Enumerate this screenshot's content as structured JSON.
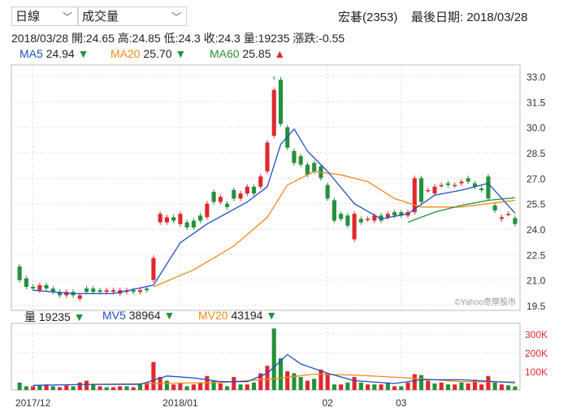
{
  "period_select": {
    "value": "日線"
  },
  "indicator_select": {
    "value": "成交量"
  },
  "stock": {
    "title": "宏碁(2353)",
    "last_date_label": "最後日期: 2018/03/28"
  },
  "ohlc": {
    "date": "2018/03/28",
    "open": "開:24.65",
    "high": "高:24.85",
    "low": "低:24.3",
    "close": "收:24.3",
    "volume": "量:19235",
    "change": "漲跌:-0.55"
  },
  "ma": [
    {
      "name": "MA5",
      "value": "24.94",
      "arrow": "▼",
      "color": "#1e4fc2",
      "arrow_color": "#24913c"
    },
    {
      "name": "MA20",
      "value": "25.70",
      "arrow": "▼",
      "color": "#f08a1c",
      "arrow_color": "#24913c"
    },
    {
      "name": "MA60",
      "value": "25.85",
      "arrow": "▲",
      "color": "#24913c",
      "arrow_color": "#e0282e"
    }
  ],
  "vol_legend": [
    {
      "name": "量",
      "value": "19235",
      "arrow": "▼",
      "color": "#222",
      "arrow_color": "#24913c"
    },
    {
      "name": "MV5",
      "value": "38964",
      "arrow": "▼",
      "color": "#1e4fc2",
      "arrow_color": "#24913c"
    },
    {
      "name": "MV20",
      "value": "43194",
      "arrow": "▼",
      "color": "#f08a1c",
      "arrow_color": "#24913c"
    }
  ],
  "watermark": "©Yahoo奇摩股市",
  "chart_data": {
    "type": "candlestick",
    "colors": {
      "up": "#e0282e",
      "down": "#24913c",
      "ma5": "#1e4fc2",
      "ma20": "#f08a1c",
      "ma60": "#24913c"
    },
    "price_axis": {
      "ticks": [
        "33.0",
        "31.5",
        "30.0",
        "28.5",
        "27.0",
        "25.5",
        "24.0",
        "22.5",
        "21.0",
        "19.5"
      ],
      "range": [
        19.5,
        33.0
      ]
    },
    "volume_axis": {
      "ticks": [
        "300K",
        "200K",
        "100K"
      ],
      "range": [
        0,
        340000
      ]
    },
    "x_labels": [
      {
        "label": "2017/12",
        "index": 2
      },
      {
        "label": "2018/01",
        "index": 24
      },
      {
        "label": "02",
        "index": 46
      },
      {
        "label": "03",
        "index": 57
      }
    ],
    "candles": [
      [
        21.8,
        21.0
      ],
      [
        21.1,
        20.6
      ],
      [
        20.6,
        20.5
      ],
      [
        20.4,
        20.7
      ],
      [
        20.7,
        20.5
      ],
      [
        20.5,
        20.3
      ],
      [
        20.3,
        20.1
      ],
      [
        20.1,
        20.3
      ],
      [
        20.3,
        20.1
      ],
      [
        19.9,
        20.1
      ],
      [
        20.5,
        20.3
      ],
      [
        20.5,
        20.3
      ],
      [
        20.4,
        20.3
      ],
      [
        20.3,
        20.4
      ],
      [
        20.3,
        20.4
      ],
      [
        20.2,
        20.4
      ],
      [
        20.3,
        20.4
      ],
      [
        20.4,
        20.3
      ],
      [
        20.3,
        20.4
      ],
      [
        20.5,
        20.4
      ],
      [
        21.0,
        22.3
      ],
      [
        24.4,
        24.9
      ],
      [
        24.4,
        24.7
      ],
      [
        24.7,
        24.5
      ],
      [
        24.3,
        24.9
      ],
      [
        24.4,
        24.1
      ],
      [
        24.5,
        24.1
      ],
      [
        24.8,
        24.5
      ],
      [
        24.7,
        25.5
      ],
      [
        26.2,
        25.6
      ],
      [
        25.6,
        25.9
      ],
      [
        25.5,
        25.3
      ],
      [
        26.3,
        25.8
      ],
      [
        25.8,
        26.1
      ],
      [
        26.1,
        26.5
      ],
      [
        26.5,
        26.1
      ],
      [
        26.5,
        27.1
      ],
      [
        27.4,
        29.1
      ],
      [
        29.5,
        32.2
      ],
      [
        32.8,
        30.2
      ],
      [
        30.0,
        28.8
      ],
      [
        28.6,
        27.9
      ],
      [
        28.3,
        27.8
      ],
      [
        27.8,
        27.2
      ],
      [
        27.9,
        27.4
      ],
      [
        27.7,
        27.0
      ],
      [
        26.6,
        25.8
      ],
      [
        25.7,
        24.5
      ],
      [
        24.9,
        24.6
      ],
      [
        24.8,
        24.2
      ],
      [
        23.4,
        24.9
      ],
      [
        24.6,
        24.4
      ],
      [
        24.6,
        24.6
      ],
      [
        24.5,
        24.8
      ],
      [
        24.8,
        24.5
      ],
      [
        24.7,
        24.9
      ],
      [
        25.0,
        24.8
      ],
      [
        25.0,
        24.8
      ],
      [
        24.8,
        25.0
      ],
      [
        25.0,
        27.0
      ],
      [
        27.0,
        25.6
      ],
      [
        26.3,
        26.3
      ],
      [
        26.1,
        26.5
      ],
      [
        26.6,
        26.6
      ],
      [
        26.7,
        26.6
      ],
      [
        26.6,
        26.6
      ],
      [
        26.7,
        26.8
      ],
      [
        27.0,
        26.8
      ],
      [
        26.7,
        26.5
      ],
      [
        26.4,
        26.3
      ],
      [
        27.1,
        25.8
      ],
      [
        25.4,
        25.1
      ],
      [
        24.6,
        24.7
      ],
      [
        24.9,
        24.9
      ],
      [
        24.65,
        24.3
      ]
    ],
    "highs_lows": {
      "high_peak": 33.0,
      "low_trough": 19.7
    },
    "volumes": [
      [
        40000,
        "down"
      ],
      [
        20000,
        "down"
      ],
      [
        20000,
        "up"
      ],
      [
        25000,
        "down"
      ],
      [
        30000,
        "up"
      ],
      [
        20000,
        "down"
      ],
      [
        15000,
        "up"
      ],
      [
        25000,
        "up"
      ],
      [
        20000,
        "down"
      ],
      [
        40000,
        "up"
      ],
      [
        50000,
        "up"
      ],
      [
        30000,
        "down"
      ],
      [
        20000,
        "up"
      ],
      [
        15000,
        "down"
      ],
      [
        15000,
        "up"
      ],
      [
        20000,
        "up"
      ],
      [
        20000,
        "down"
      ],
      [
        15000,
        "up"
      ],
      [
        30000,
        "down"
      ],
      [
        40000,
        "up"
      ],
      [
        150000,
        "up"
      ],
      [
        70000,
        "up"
      ],
      [
        50000,
        "down"
      ],
      [
        30000,
        "up"
      ],
      [
        35000,
        "up"
      ],
      [
        20000,
        "down"
      ],
      [
        30000,
        "up"
      ],
      [
        40000,
        "up"
      ],
      [
        75000,
        "up"
      ],
      [
        50000,
        "down"
      ],
      [
        35000,
        "up"
      ],
      [
        20000,
        "down"
      ],
      [
        70000,
        "up"
      ],
      [
        30000,
        "down"
      ],
      [
        30000,
        "up"
      ],
      [
        40000,
        "down"
      ],
      [
        90000,
        "up"
      ],
      [
        130000,
        "up"
      ],
      [
        330000,
        "down"
      ],
      [
        170000,
        "down"
      ],
      [
        100000,
        "up"
      ],
      [
        90000,
        "down"
      ],
      [
        70000,
        "down"
      ],
      [
        50000,
        "up"
      ],
      [
        60000,
        "down"
      ],
      [
        110000,
        "up"
      ],
      [
        90000,
        "up"
      ],
      [
        30000,
        "down"
      ],
      [
        30000,
        "up"
      ],
      [
        40000,
        "down"
      ],
      [
        70000,
        "up"
      ],
      [
        40000,
        "down"
      ],
      [
        30000,
        "up"
      ],
      [
        30000,
        "down"
      ],
      [
        30000,
        "up"
      ],
      [
        40000,
        "down"
      ],
      [
        20000,
        "up"
      ],
      [
        20000,
        "down"
      ],
      [
        40000,
        "up"
      ],
      [
        85000,
        "up"
      ],
      [
        80000,
        "down"
      ],
      [
        50000,
        "up"
      ],
      [
        35000,
        "down"
      ],
      [
        40000,
        "up"
      ],
      [
        30000,
        "down"
      ],
      [
        30000,
        "up"
      ],
      [
        40000,
        "down"
      ],
      [
        35000,
        "up"
      ],
      [
        55000,
        "up"
      ],
      [
        30000,
        "up"
      ],
      [
        75000,
        "up"
      ],
      [
        40000,
        "down"
      ],
      [
        30000,
        "up"
      ],
      [
        25000,
        "down"
      ],
      [
        19235,
        "down"
      ]
    ],
    "ma5_points": [
      [
        2,
        20.4
      ],
      [
        8,
        20.2
      ],
      [
        14,
        20.2
      ],
      [
        20,
        20.7
      ],
      [
        24,
        23.2
      ],
      [
        28,
        24.3
      ],
      [
        34,
        25.6
      ],
      [
        37,
        26.5
      ],
      [
        39,
        29.0
      ],
      [
        41,
        29.9
      ],
      [
        43,
        28.6
      ],
      [
        46,
        27.4
      ],
      [
        50,
        25.5
      ],
      [
        54,
        24.6
      ],
      [
        58,
        24.9
      ],
      [
        62,
        26.0
      ],
      [
        66,
        26.3
      ],
      [
        70,
        26.7
      ],
      [
        74,
        24.94
      ]
    ],
    "ma20_points": [
      [
        20,
        20.6
      ],
      [
        26,
        21.6
      ],
      [
        32,
        23.0
      ],
      [
        37,
        24.7
      ],
      [
        40,
        26.6
      ],
      [
        44,
        27.4
      ],
      [
        48,
        27.2
      ],
      [
        52,
        26.8
      ],
      [
        56,
        25.8
      ],
      [
        60,
        25.3
      ],
      [
        66,
        25.3
      ],
      [
        70,
        25.5
      ],
      [
        74,
        25.7
      ]
    ],
    "ma60_points": [
      [
        58,
        24.4
      ],
      [
        62,
        25.0
      ],
      [
        66,
        25.4
      ],
      [
        70,
        25.7
      ],
      [
        74,
        25.85
      ]
    ],
    "mv5_points": [
      [
        2,
        25000
      ],
      [
        10,
        30000
      ],
      [
        18,
        30000
      ],
      [
        22,
        75000
      ],
      [
        26,
        65000
      ],
      [
        30,
        45000
      ],
      [
        34,
        45000
      ],
      [
        37,
        90000
      ],
      [
        40,
        190000
      ],
      [
        42,
        140000
      ],
      [
        46,
        90000
      ],
      [
        50,
        50000
      ],
      [
        56,
        35000
      ],
      [
        60,
        55000
      ],
      [
        66,
        55000
      ],
      [
        74,
        38964
      ]
    ],
    "mv20_points": [
      [
        10,
        30000
      ],
      [
        20,
        35000
      ],
      [
        30,
        40000
      ],
      [
        38,
        60000
      ],
      [
        44,
        85000
      ],
      [
        50,
        80000
      ],
      [
        58,
        65000
      ],
      [
        66,
        45000
      ],
      [
        74,
        43194
      ]
    ]
  }
}
